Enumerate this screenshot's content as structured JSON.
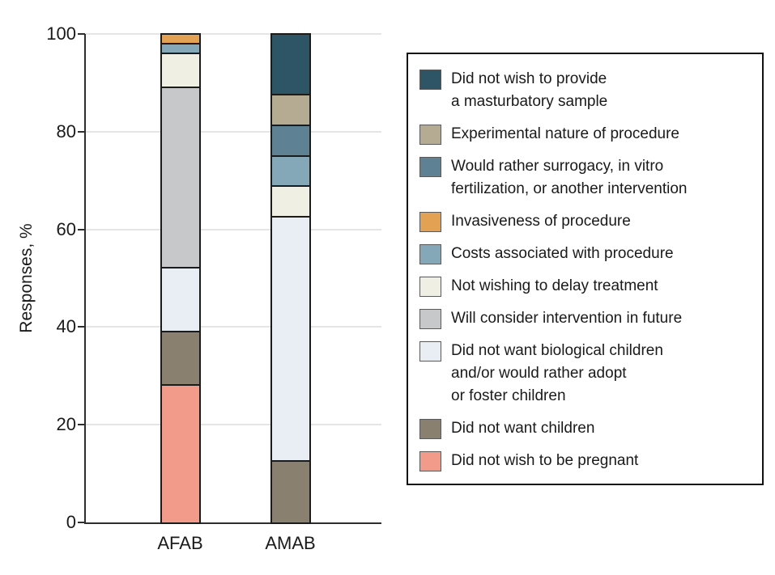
{
  "chart_data": {
    "type": "bar",
    "stacked": true,
    "title": "",
    "xlabel": "",
    "ylabel": "Responses, %",
    "categories": [
      "AFAB",
      "AMAB"
    ],
    "ylim": [
      0,
      100
    ],
    "yticks": [
      0,
      20,
      40,
      60,
      80,
      100
    ],
    "grid": true,
    "legend_position": "right",
    "series": [
      {
        "name": "Did not wish to provide a masturbatory sample",
        "legend_lines": [
          "Did not wish to provide",
          "a masturbatory sample"
        ],
        "color": "#2E5565",
        "values": [
          0,
          12.5
        ]
      },
      {
        "name": "Experimental nature of procedure",
        "legend_lines": [
          "Experimental nature of procedure"
        ],
        "color": "#B5AA92",
        "values": [
          0,
          6.25
        ]
      },
      {
        "name": "Would rather surrogacy, in vitro fertilization, or another intervention",
        "legend_lines": [
          "Would rather surrogacy, in vitro",
          "fertilization, or another intervention"
        ],
        "color": "#5E8294",
        "values": [
          0,
          6.25
        ]
      },
      {
        "name": "Invasiveness of procedure",
        "legend_lines": [
          "Invasiveness of procedure"
        ],
        "color": "#E3A153",
        "values": [
          2,
          0
        ]
      },
      {
        "name": "Costs associated with procedure",
        "legend_lines": [
          "Costs associated with procedure"
        ],
        "color": "#84A8B8",
        "values": [
          2,
          6.25
        ]
      },
      {
        "name": "Not wishing to delay treatment",
        "legend_lines": [
          "Not wishing to delay treatment"
        ],
        "color": "#F0EFE3",
        "values": [
          7,
          6.25
        ]
      },
      {
        "name": "Will consider intervention in future",
        "legend_lines": [
          "Will consider intervention in future"
        ],
        "color": "#C7C8CA",
        "values": [
          37,
          0
        ]
      },
      {
        "name": "Did not want biological children and/or would rather adopt or foster children",
        "legend_lines": [
          "Did not want biological children",
          "and/or would rather adopt",
          "or foster children"
        ],
        "color": "#E8EEF3",
        "values": [
          13,
          50
        ]
      },
      {
        "name": "Did not want children",
        "legend_lines": [
          "Did not want children"
        ],
        "color": "#8A8070",
        "values": [
          11,
          12.5
        ]
      },
      {
        "name": "Did not wish to be pregnant",
        "legend_lines": [
          "Did not wish to be pregnant"
        ],
        "color": "#F29B8A",
        "values": [
          28,
          0
        ]
      }
    ]
  }
}
